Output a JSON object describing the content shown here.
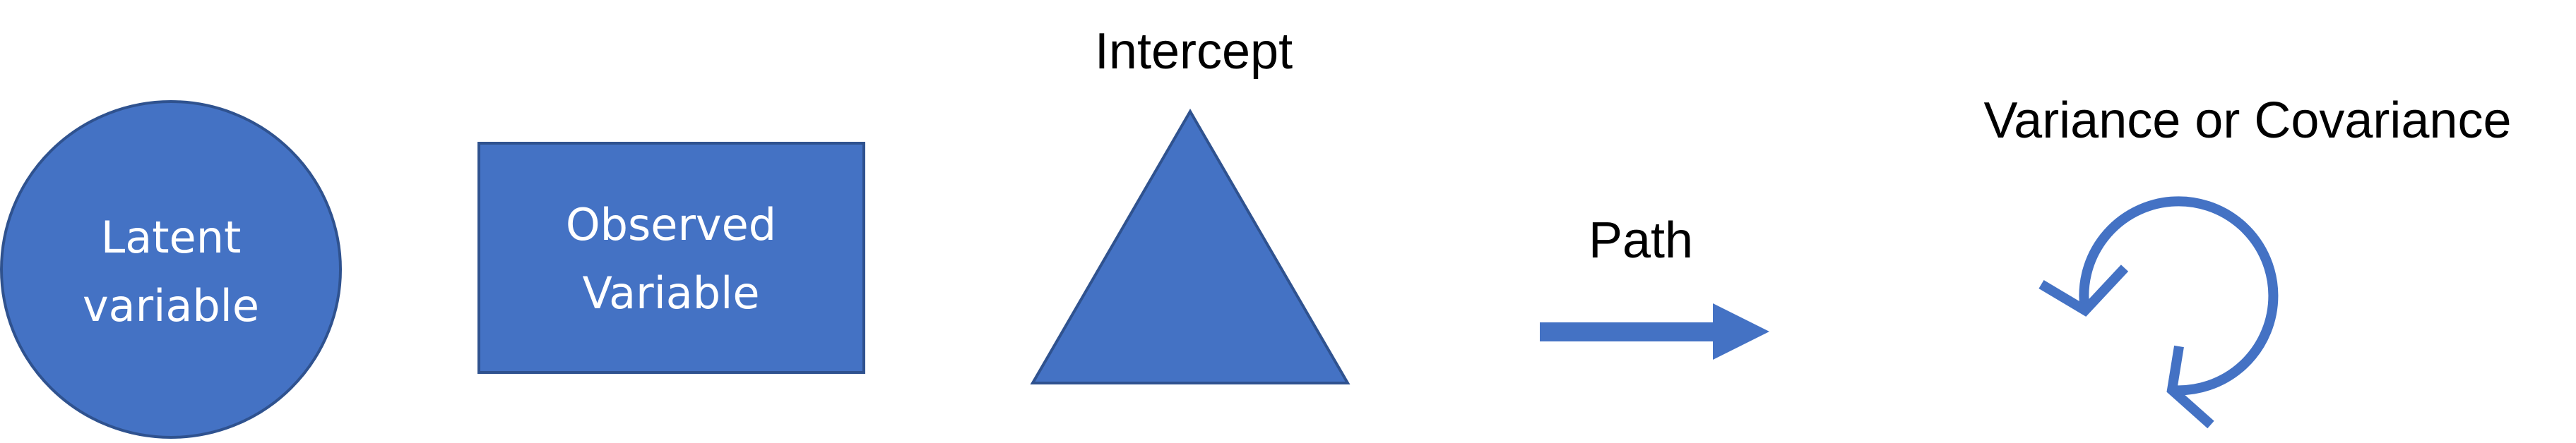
{
  "legend": {
    "latent": {
      "label_lines": [
        "Latent",
        "variable"
      ]
    },
    "observed": {
      "label_lines": [
        "Observed",
        "Variable"
      ]
    },
    "intercept": {
      "label": "Intercept"
    },
    "path": {
      "label": "Path"
    },
    "variance": {
      "label": "Variance or Covariance"
    }
  },
  "colors": {
    "fill": "#4472C4",
    "stroke": "#2F528F",
    "label_on_shape": "#FFFFFF",
    "label_text": "#000000"
  }
}
